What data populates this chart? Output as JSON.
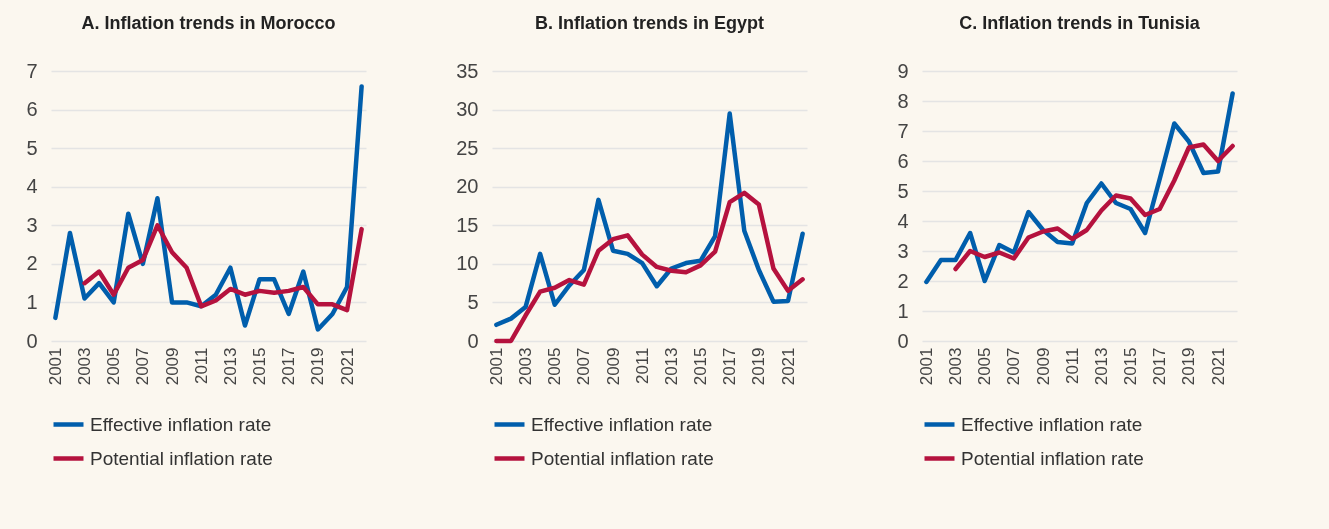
{
  "chart_data": [
    {
      "type": "line",
      "title": "A. Inflation trends in Morocco",
      "categories": [
        "2001",
        null,
        "2003",
        null,
        "2005",
        null,
        "2007",
        null,
        "2009",
        null,
        "2011",
        null,
        "2013",
        null,
        "2015",
        null,
        "2017",
        null,
        "2019",
        null,
        "2021",
        null
      ],
      "ylim": [
        0,
        7
      ],
      "yticks": [
        0,
        1,
        2,
        3,
        4,
        5,
        6,
        7
      ],
      "grid": "y",
      "legend": "bottom",
      "series": [
        {
          "name": "Effective inflation rate",
          "color": "#005eac",
          "values": [
            0.6,
            2.8,
            1.1,
            1.5,
            1.0,
            3.3,
            2.0,
            3.7,
            1.0,
            1.0,
            0.9,
            1.2,
            1.9,
            0.4,
            1.6,
            1.6,
            0.7,
            1.8,
            0.3,
            0.7,
            1.4,
            6.6
          ]
        },
        {
          "name": "Potential inflation rate",
          "color": "#b5123e",
          "values": [
            null,
            null,
            1.5,
            1.8,
            1.2,
            1.9,
            2.1,
            3.0,
            2.3,
            1.9,
            0.9,
            1.05,
            1.35,
            1.2,
            1.3,
            1.25,
            1.3,
            1.4,
            0.95,
            0.95,
            0.8,
            2.9
          ]
        }
      ]
    },
    {
      "type": "line",
      "title": "B. Inflation trends in Egypt",
      "categories": [
        "2001",
        null,
        "2003",
        null,
        "2005",
        null,
        "2007",
        null,
        "2009",
        null,
        "2011",
        null,
        "2013",
        null,
        "2015",
        null,
        "2017",
        null,
        "2019",
        null,
        "2021",
        null
      ],
      "ylim": [
        0,
        35
      ],
      "yticks": [
        0,
        5,
        10,
        15,
        20,
        25,
        30,
        35
      ],
      "grid": "y",
      "legend": "bottom",
      "series": [
        {
          "name": "Effective inflation rate",
          "color": "#005eac",
          "values": [
            2.1,
            2.9,
            4.4,
            11.3,
            4.7,
            7.2,
            9.2,
            18.3,
            11.7,
            11.3,
            10.1,
            7.1,
            9.4,
            10.1,
            10.4,
            13.6,
            29.5,
            14.3,
            9.2,
            5.1,
            5.2,
            13.9
          ]
        },
        {
          "name": "Potential inflation rate",
          "color": "#b5123e",
          "values": [
            0,
            0,
            3.3,
            6.4,
            6.9,
            7.9,
            7.3,
            11.7,
            13.2,
            13.7,
            11.2,
            9.6,
            9.1,
            8.9,
            9.8,
            11.6,
            18.0,
            19.2,
            17.7,
            9.4,
            6.5,
            8.0
          ]
        }
      ]
    },
    {
      "type": "line",
      "title": "C. Inflation trends in Tunisia",
      "categories": [
        "2001",
        null,
        "2003",
        null,
        "2005",
        null,
        "2007",
        null,
        "2009",
        null,
        "2011",
        null,
        "2013",
        null,
        "2015",
        null,
        "2017",
        null,
        "2019",
        null,
        "2021",
        null
      ],
      "ylim": [
        0,
        9
      ],
      "yticks": [
        0,
        1,
        2,
        3,
        4,
        5,
        6,
        7,
        8,
        9
      ],
      "grid": "y",
      "legend": "bottom",
      "series": [
        {
          "name": "Effective inflation rate",
          "color": "#005eac",
          "values": [
            1.97,
            2.7,
            2.7,
            3.6,
            2.0,
            3.2,
            2.95,
            4.3,
            3.7,
            3.3,
            3.25,
            4.6,
            5.25,
            4.6,
            4.4,
            3.6,
            5.4,
            7.25,
            6.65,
            5.6,
            5.65,
            8.25
          ]
        },
        {
          "name": "Potential inflation rate",
          "color": "#b5123e",
          "values": [
            null,
            null,
            2.4,
            3.0,
            2.8,
            2.95,
            2.75,
            3.45,
            3.65,
            3.75,
            3.4,
            3.7,
            4.35,
            4.85,
            4.75,
            4.2,
            4.4,
            5.35,
            6.45,
            6.55,
            6.0,
            6.5
          ]
        }
      ]
    }
  ]
}
